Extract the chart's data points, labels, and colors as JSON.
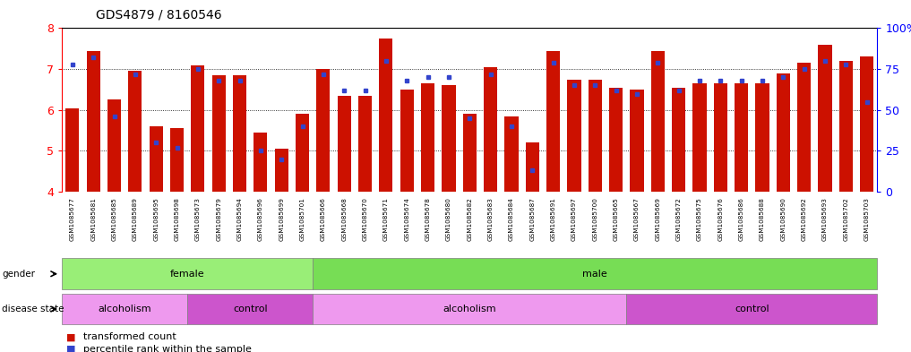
{
  "title": "GDS4879 / 8160546",
  "samples": [
    "GSM1085677",
    "GSM1085681",
    "GSM1085685",
    "GSM1085689",
    "GSM1085695",
    "GSM1085698",
    "GSM1085673",
    "GSM1085679",
    "GSM1085694",
    "GSM1085696",
    "GSM1085699",
    "GSM1085701",
    "GSM1085666",
    "GSM1085668",
    "GSM1085670",
    "GSM1085671",
    "GSM1085674",
    "GSM1085678",
    "GSM1085680",
    "GSM1085682",
    "GSM1085683",
    "GSM1085684",
    "GSM1085687",
    "GSM1085691",
    "GSM1085697",
    "GSM1085700",
    "GSM1085665",
    "GSM1085667",
    "GSM1085669",
    "GSM1085672",
    "GSM1085675",
    "GSM1085676",
    "GSM1085686",
    "GSM1085688",
    "GSM1085690",
    "GSM1085692",
    "GSM1085693",
    "GSM1085702",
    "GSM1085703"
  ],
  "bar_heights": [
    6.05,
    7.45,
    6.25,
    6.95,
    5.6,
    5.55,
    7.1,
    6.85,
    6.85,
    5.45,
    5.05,
    5.9,
    7.0,
    6.35,
    6.35,
    7.75,
    6.5,
    6.65,
    6.6,
    5.9,
    7.05,
    5.85,
    5.2,
    7.45,
    6.75,
    6.75,
    6.55,
    6.5,
    7.45,
    6.55,
    6.65,
    6.65,
    6.65,
    6.65,
    6.9,
    7.15,
    7.6,
    7.2,
    7.3
  ],
  "percentile_ranks": [
    78,
    82,
    46,
    72,
    30,
    27,
    75,
    68,
    68,
    25,
    20,
    40,
    72,
    62,
    62,
    80,
    68,
    70,
    70,
    45,
    72,
    40,
    13,
    79,
    65,
    65,
    62,
    60,
    79,
    62,
    68,
    68,
    68,
    68,
    70,
    75,
    80,
    78,
    55
  ],
  "ylim": [
    4,
    8
  ],
  "yticks": [
    4,
    5,
    6,
    7,
    8
  ],
  "right_yticks": [
    0,
    25,
    50,
    75,
    100
  ],
  "right_ylabels": [
    "0",
    "25",
    "50",
    "75",
    "100%"
  ],
  "bar_color": "#CC1100",
  "dot_color": "#3344CC",
  "gender_female_color": "#99EE77",
  "gender_male_color": "#77DD55",
  "disease_alcoholism_color": "#EE99EE",
  "disease_control_color": "#CC55CC",
  "gender_groups": [
    {
      "label": "female",
      "start": 0,
      "end": 12
    },
    {
      "label": "male",
      "start": 12,
      "end": 39
    }
  ],
  "disease_groups": [
    {
      "label": "alcoholism",
      "start": 0,
      "end": 6
    },
    {
      "label": "control",
      "start": 6,
      "end": 12
    },
    {
      "label": "alcoholism",
      "start": 12,
      "end": 27
    },
    {
      "label": "control",
      "start": 27,
      "end": 39
    }
  ]
}
